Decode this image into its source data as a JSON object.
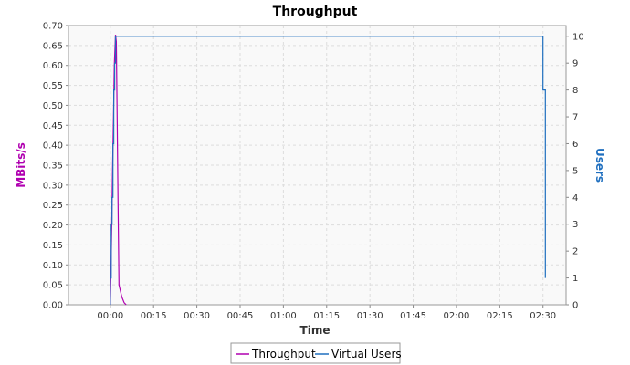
{
  "chart_data": {
    "type": "line",
    "title": "Throughput",
    "xlabel": "Time",
    "ylabel_left": "MBits/s",
    "ylabel_right": "Users",
    "x_unit": "minutes",
    "xlim": [
      -14.5,
      158
    ],
    "x_ticks": [
      {
        "value": 0,
        "label": "00:00"
      },
      {
        "value": 15,
        "label": "00:15"
      },
      {
        "value": 30,
        "label": "00:30"
      },
      {
        "value": 45,
        "label": "00:45"
      },
      {
        "value": 60,
        "label": "01:00"
      },
      {
        "value": 75,
        "label": "01:15"
      },
      {
        "value": 90,
        "label": "01:30"
      },
      {
        "value": 105,
        "label": "01:45"
      },
      {
        "value": 120,
        "label": "02:00"
      },
      {
        "value": 135,
        "label": "02:15"
      },
      {
        "value": 150,
        "label": "02:30"
      }
    ],
    "y_left": {
      "lim": [
        0,
        0.7
      ],
      "ticks": [
        "0.00",
        "0.05",
        "0.10",
        "0.15",
        "0.20",
        "0.25",
        "0.30",
        "0.35",
        "0.40",
        "0.45",
        "0.50",
        "0.55",
        "0.60",
        "0.65",
        "0.70"
      ],
      "color": "#b000b0"
    },
    "y_right": {
      "lim": [
        0,
        10.4
      ],
      "ticks": [
        "0",
        "1",
        "2",
        "3",
        "4",
        "5",
        "6",
        "7",
        "8",
        "9",
        "10"
      ],
      "color": "#1f6fbf"
    },
    "grid": true,
    "legend_position": "bottom-center",
    "series": [
      {
        "name": "Throughput",
        "axis": "left",
        "color": "#b000b0",
        "points": [
          [
            0,
            0
          ],
          [
            0.2,
            0.07
          ],
          [
            0.5,
            0.2
          ],
          [
            0.8,
            0.34
          ],
          [
            1.1,
            0.47
          ],
          [
            1.4,
            0.6
          ],
          [
            1.8,
            0.677
          ],
          [
            2.1,
            0.66
          ],
          [
            2.4,
            0.45
          ],
          [
            2.7,
            0.25
          ],
          [
            3.0,
            0.05
          ],
          [
            4.0,
            0.02
          ],
          [
            4.8,
            0.005
          ],
          [
            5.5,
            0
          ]
        ]
      },
      {
        "name": "Virtual Users",
        "axis": "right",
        "color": "#1f6fbf",
        "points": [
          [
            0,
            0
          ],
          [
            0,
            1
          ],
          [
            0.3,
            1
          ],
          [
            0.3,
            3
          ],
          [
            0.6,
            3
          ],
          [
            0.6,
            4
          ],
          [
            0.9,
            4
          ],
          [
            0.9,
            6
          ],
          [
            1.2,
            6
          ],
          [
            1.2,
            8
          ],
          [
            1.5,
            8
          ],
          [
            1.5,
            9
          ],
          [
            1.8,
            9
          ],
          [
            1.8,
            10
          ],
          [
            150,
            10
          ],
          [
            150,
            8
          ],
          [
            150.8,
            8
          ],
          [
            150.8,
            1
          ]
        ]
      }
    ]
  }
}
